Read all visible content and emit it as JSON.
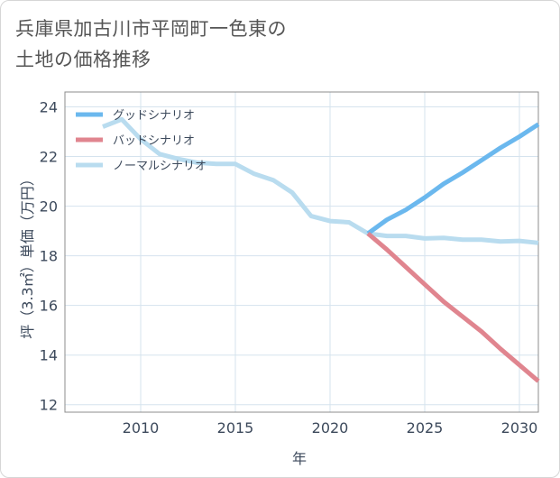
{
  "title": {
    "line1": "兵庫県加古川市平岡町一色東の",
    "line2": "土地の価格推移"
  },
  "chart_data": {
    "type": "line",
    "xlabel": "年",
    "ylabel": "坪（3.3㎡）単価（万円）",
    "xlim": [
      2006,
      2031
    ],
    "ylim": [
      11.7,
      24.6
    ],
    "x_ticks": [
      2010,
      2015,
      2020,
      2025,
      2030
    ],
    "y_ticks": [
      12,
      14,
      16,
      18,
      20,
      22,
      24
    ],
    "grid": true,
    "legend_position": "top-left",
    "series": [
      {
        "name": "グッドシナリオ",
        "color": "#6bb8ee",
        "x": [
          2022,
          2023,
          2024,
          2025,
          2026,
          2027,
          2028,
          2029,
          2030,
          2031
        ],
        "y": [
          18.9,
          19.45,
          19.85,
          20.35,
          20.9,
          21.35,
          21.85,
          22.35,
          22.8,
          23.3
        ]
      },
      {
        "name": "バッドシナリオ",
        "color": "#e0858f",
        "x": [
          2022,
          2023,
          2024,
          2025,
          2026,
          2027,
          2028,
          2029,
          2030,
          2031
        ],
        "y": [
          18.9,
          18.25,
          17.55,
          16.85,
          16.15,
          15.55,
          14.95,
          14.25,
          13.6,
          12.95
        ]
      },
      {
        "name": "ノーマルシナリオ",
        "color": "#b9dcef",
        "x": [
          2008,
          2009,
          2010,
          2011,
          2012,
          2013,
          2014,
          2015,
          2016,
          2017,
          2018,
          2019,
          2020,
          2021,
          2022,
          2023,
          2024,
          2025,
          2026,
          2027,
          2028,
          2029,
          2030,
          2031
        ],
        "y": [
          23.2,
          23.5,
          22.7,
          22.1,
          21.9,
          21.75,
          21.7,
          21.7,
          21.3,
          21.05,
          20.55,
          19.6,
          19.4,
          19.35,
          18.9,
          18.8,
          18.8,
          18.7,
          18.72,
          18.65,
          18.65,
          18.58,
          18.6,
          18.52
        ]
      }
    ]
  }
}
